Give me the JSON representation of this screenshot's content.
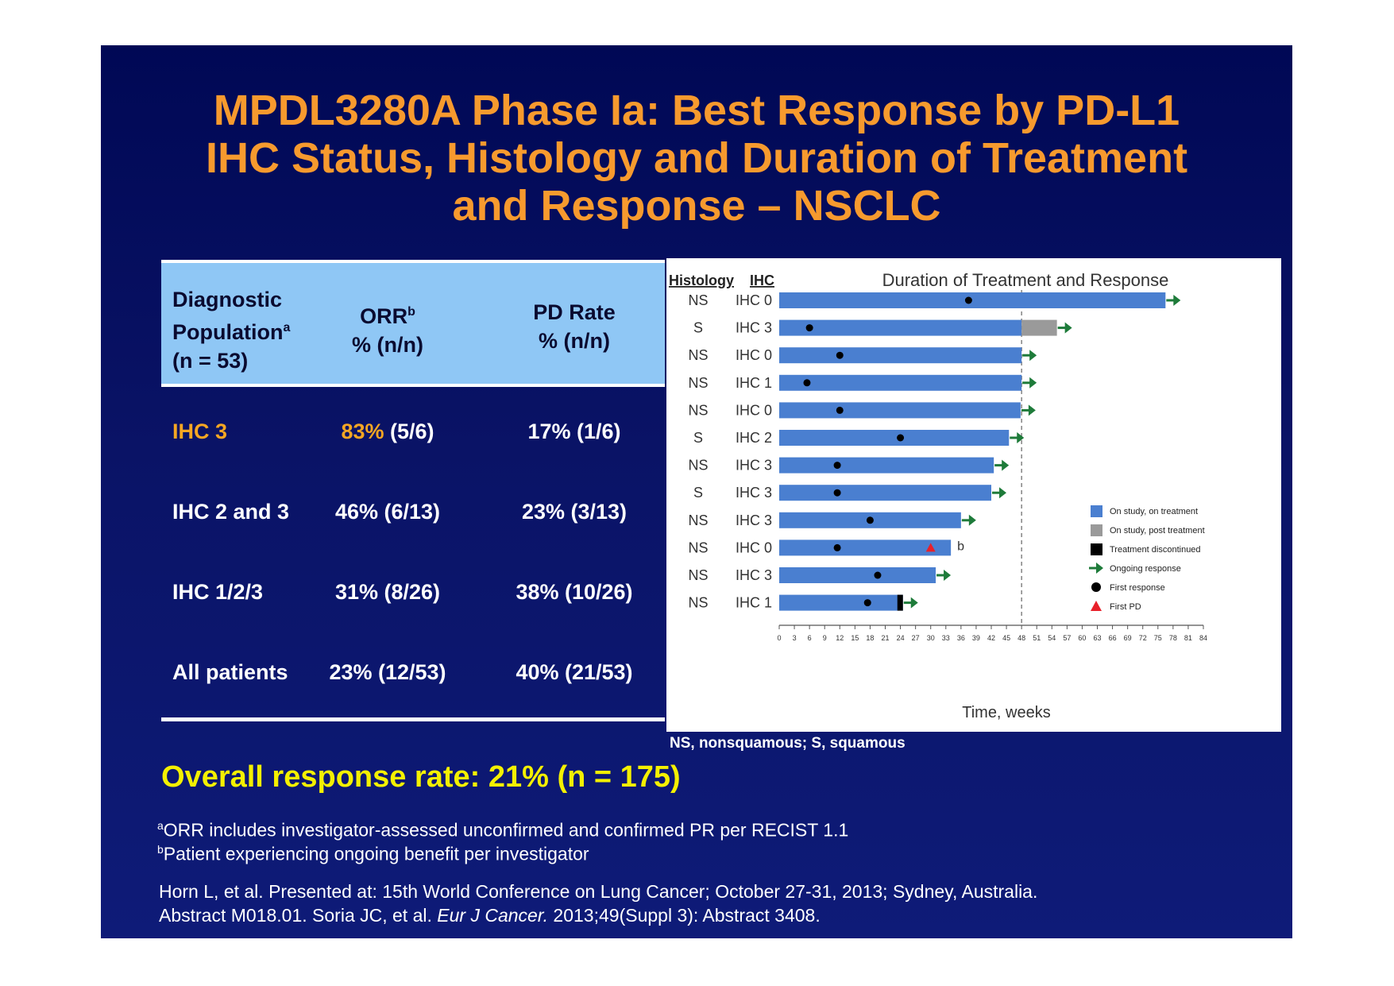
{
  "title": {
    "line1": "MPDL3280A Phase Ia: Best Response by PD-L1",
    "line2": "IHC Status, Histology and Duration of Treatment",
    "line3": "and Response – NSCLC"
  },
  "table": {
    "headers": {
      "col1_line1": "Diagnostic",
      "col1_line2": "Population",
      "col1_sup": "a",
      "col1_line3": "(n = 53)",
      "col2_line1": "ORR",
      "col2_sup": "b",
      "col2_line2": "% (n/n)",
      "col3_line1": "PD Rate",
      "col3_line2": "% (n/n)"
    },
    "rows": [
      {
        "population": "IHC 3",
        "orr_pct": "83%",
        "orr_n": "(5/6)",
        "pd": "17% (1/6)"
      },
      {
        "population": "IHC 2 and 3",
        "orr_pct": "46%",
        "orr_n": "(6/13)",
        "pd": "23% (3/13)"
      },
      {
        "population": "IHC 1/2/3",
        "orr_pct": "31%",
        "orr_n": "(8/26)",
        "pd": "38% (10/26)"
      },
      {
        "population": "All patients",
        "orr_pct": "23%",
        "orr_n": "(12/53)",
        "pd": "40% (21/53)"
      }
    ]
  },
  "chart_data": {
    "type": "bar",
    "orientation": "horizontal",
    "title": "Duration of Treatment and Response",
    "xlabel": "Time, weeks",
    "row_headers": [
      "Histology",
      "IHC"
    ],
    "xlim": [
      0,
      84
    ],
    "xticks": [
      0,
      3,
      6,
      9,
      12,
      15,
      18,
      21,
      24,
      27,
      30,
      33,
      36,
      39,
      42,
      45,
      48,
      51,
      54,
      57,
      60,
      63,
      66,
      69,
      72,
      75,
      78,
      81,
      84
    ],
    "reference_line_x": 48,
    "grid": false,
    "legend_position": "right",
    "legend": [
      {
        "key": "on_treatment",
        "label": "On study, on treatment",
        "color": "#4a7fd0",
        "marker": "square"
      },
      {
        "key": "post_treatment",
        "label": "On study, post treatment",
        "color": "#9a9a9a",
        "marker": "square"
      },
      {
        "key": "discontinued",
        "label": "Treatment discontinued",
        "color": "#000000",
        "marker": "square"
      },
      {
        "key": "ongoing",
        "label": "Ongoing response",
        "color": "#1e7b3a",
        "marker": "arrow"
      },
      {
        "key": "first_response",
        "label": "First response",
        "color": "#000000",
        "marker": "circle"
      },
      {
        "key": "first_pd",
        "label": "First PD",
        "color": "#e8202a",
        "marker": "triangle"
      }
    ],
    "patients": [
      {
        "histology": "NS",
        "ihc": "IHC 0",
        "on_treatment_end": 76.5,
        "post_treatment_end": null,
        "first_response": 37.5,
        "first_pd": null,
        "discontinued": false,
        "ongoing": true,
        "note": ""
      },
      {
        "histology": "S",
        "ihc": "IHC 3",
        "on_treatment_end": 48,
        "post_treatment_end": 55,
        "first_response": 6,
        "first_pd": null,
        "discontinued": false,
        "ongoing": true,
        "note": ""
      },
      {
        "histology": "NS",
        "ihc": "IHC 0",
        "on_treatment_end": 48,
        "post_treatment_end": null,
        "first_response": 12,
        "first_pd": null,
        "discontinued": false,
        "ongoing": true,
        "note": ""
      },
      {
        "histology": "NS",
        "ihc": "IHC 1",
        "on_treatment_end": 48,
        "post_treatment_end": null,
        "first_response": 5.5,
        "first_pd": null,
        "discontinued": false,
        "ongoing": true,
        "note": ""
      },
      {
        "histology": "NS",
        "ihc": "IHC 0",
        "on_treatment_end": 47.8,
        "post_treatment_end": null,
        "first_response": 12,
        "first_pd": null,
        "discontinued": false,
        "ongoing": true,
        "note": ""
      },
      {
        "histology": "S",
        "ihc": "IHC 2",
        "on_treatment_end": 45.5,
        "post_treatment_end": null,
        "first_response": 24,
        "first_pd": null,
        "discontinued": false,
        "ongoing": true,
        "note": ""
      },
      {
        "histology": "NS",
        "ihc": "IHC 3",
        "on_treatment_end": 42.5,
        "post_treatment_end": null,
        "first_response": 11.5,
        "first_pd": null,
        "discontinued": false,
        "ongoing": true,
        "note": ""
      },
      {
        "histology": "S",
        "ihc": "IHC 3",
        "on_treatment_end": 42,
        "post_treatment_end": null,
        "first_response": 11.5,
        "first_pd": null,
        "discontinued": false,
        "ongoing": true,
        "note": ""
      },
      {
        "histology": "NS",
        "ihc": "IHC 3",
        "on_treatment_end": 36,
        "post_treatment_end": null,
        "first_response": 18,
        "first_pd": null,
        "discontinued": false,
        "ongoing": true,
        "note": ""
      },
      {
        "histology": "NS",
        "ihc": "IHC 0",
        "on_treatment_end": 34,
        "post_treatment_end": null,
        "first_response": 11.5,
        "first_pd": 30,
        "discontinued": false,
        "ongoing": false,
        "note": "b"
      },
      {
        "histology": "NS",
        "ihc": "IHC 3",
        "on_treatment_end": 31,
        "post_treatment_end": null,
        "first_response": 19.5,
        "first_pd": null,
        "discontinued": false,
        "ongoing": true,
        "note": ""
      },
      {
        "histology": "NS",
        "ihc": "IHC 1",
        "on_treatment_end": 24.5,
        "post_treatment_end": null,
        "first_response": 17.5,
        "first_pd": null,
        "discontinued": true,
        "ongoing": true,
        "note": ""
      }
    ]
  },
  "chart_note": "NS, nonsquamous; S, squamous",
  "overall": "Overall response rate: 21% (n = 175)",
  "footnotes": {
    "a_sup": "a",
    "a_text": "ORR includes investigator-assessed unconfirmed and confirmed PR per RECIST 1.1",
    "b_sup": "b",
    "b_text": "Patient experiencing ongoing benefit per investigator"
  },
  "reference": {
    "line1": "Horn L, et al. Presented at: 15th World Conference on Lung Cancer; October 27-31, 2013; Sydney, Australia.",
    "line2_a": "Abstract  M018.01. Soria JC, et al. ",
    "line2_journal": "Eur J Cancer.",
    "line2_b": " 2013;49(Suppl 3): Abstract 3408."
  }
}
